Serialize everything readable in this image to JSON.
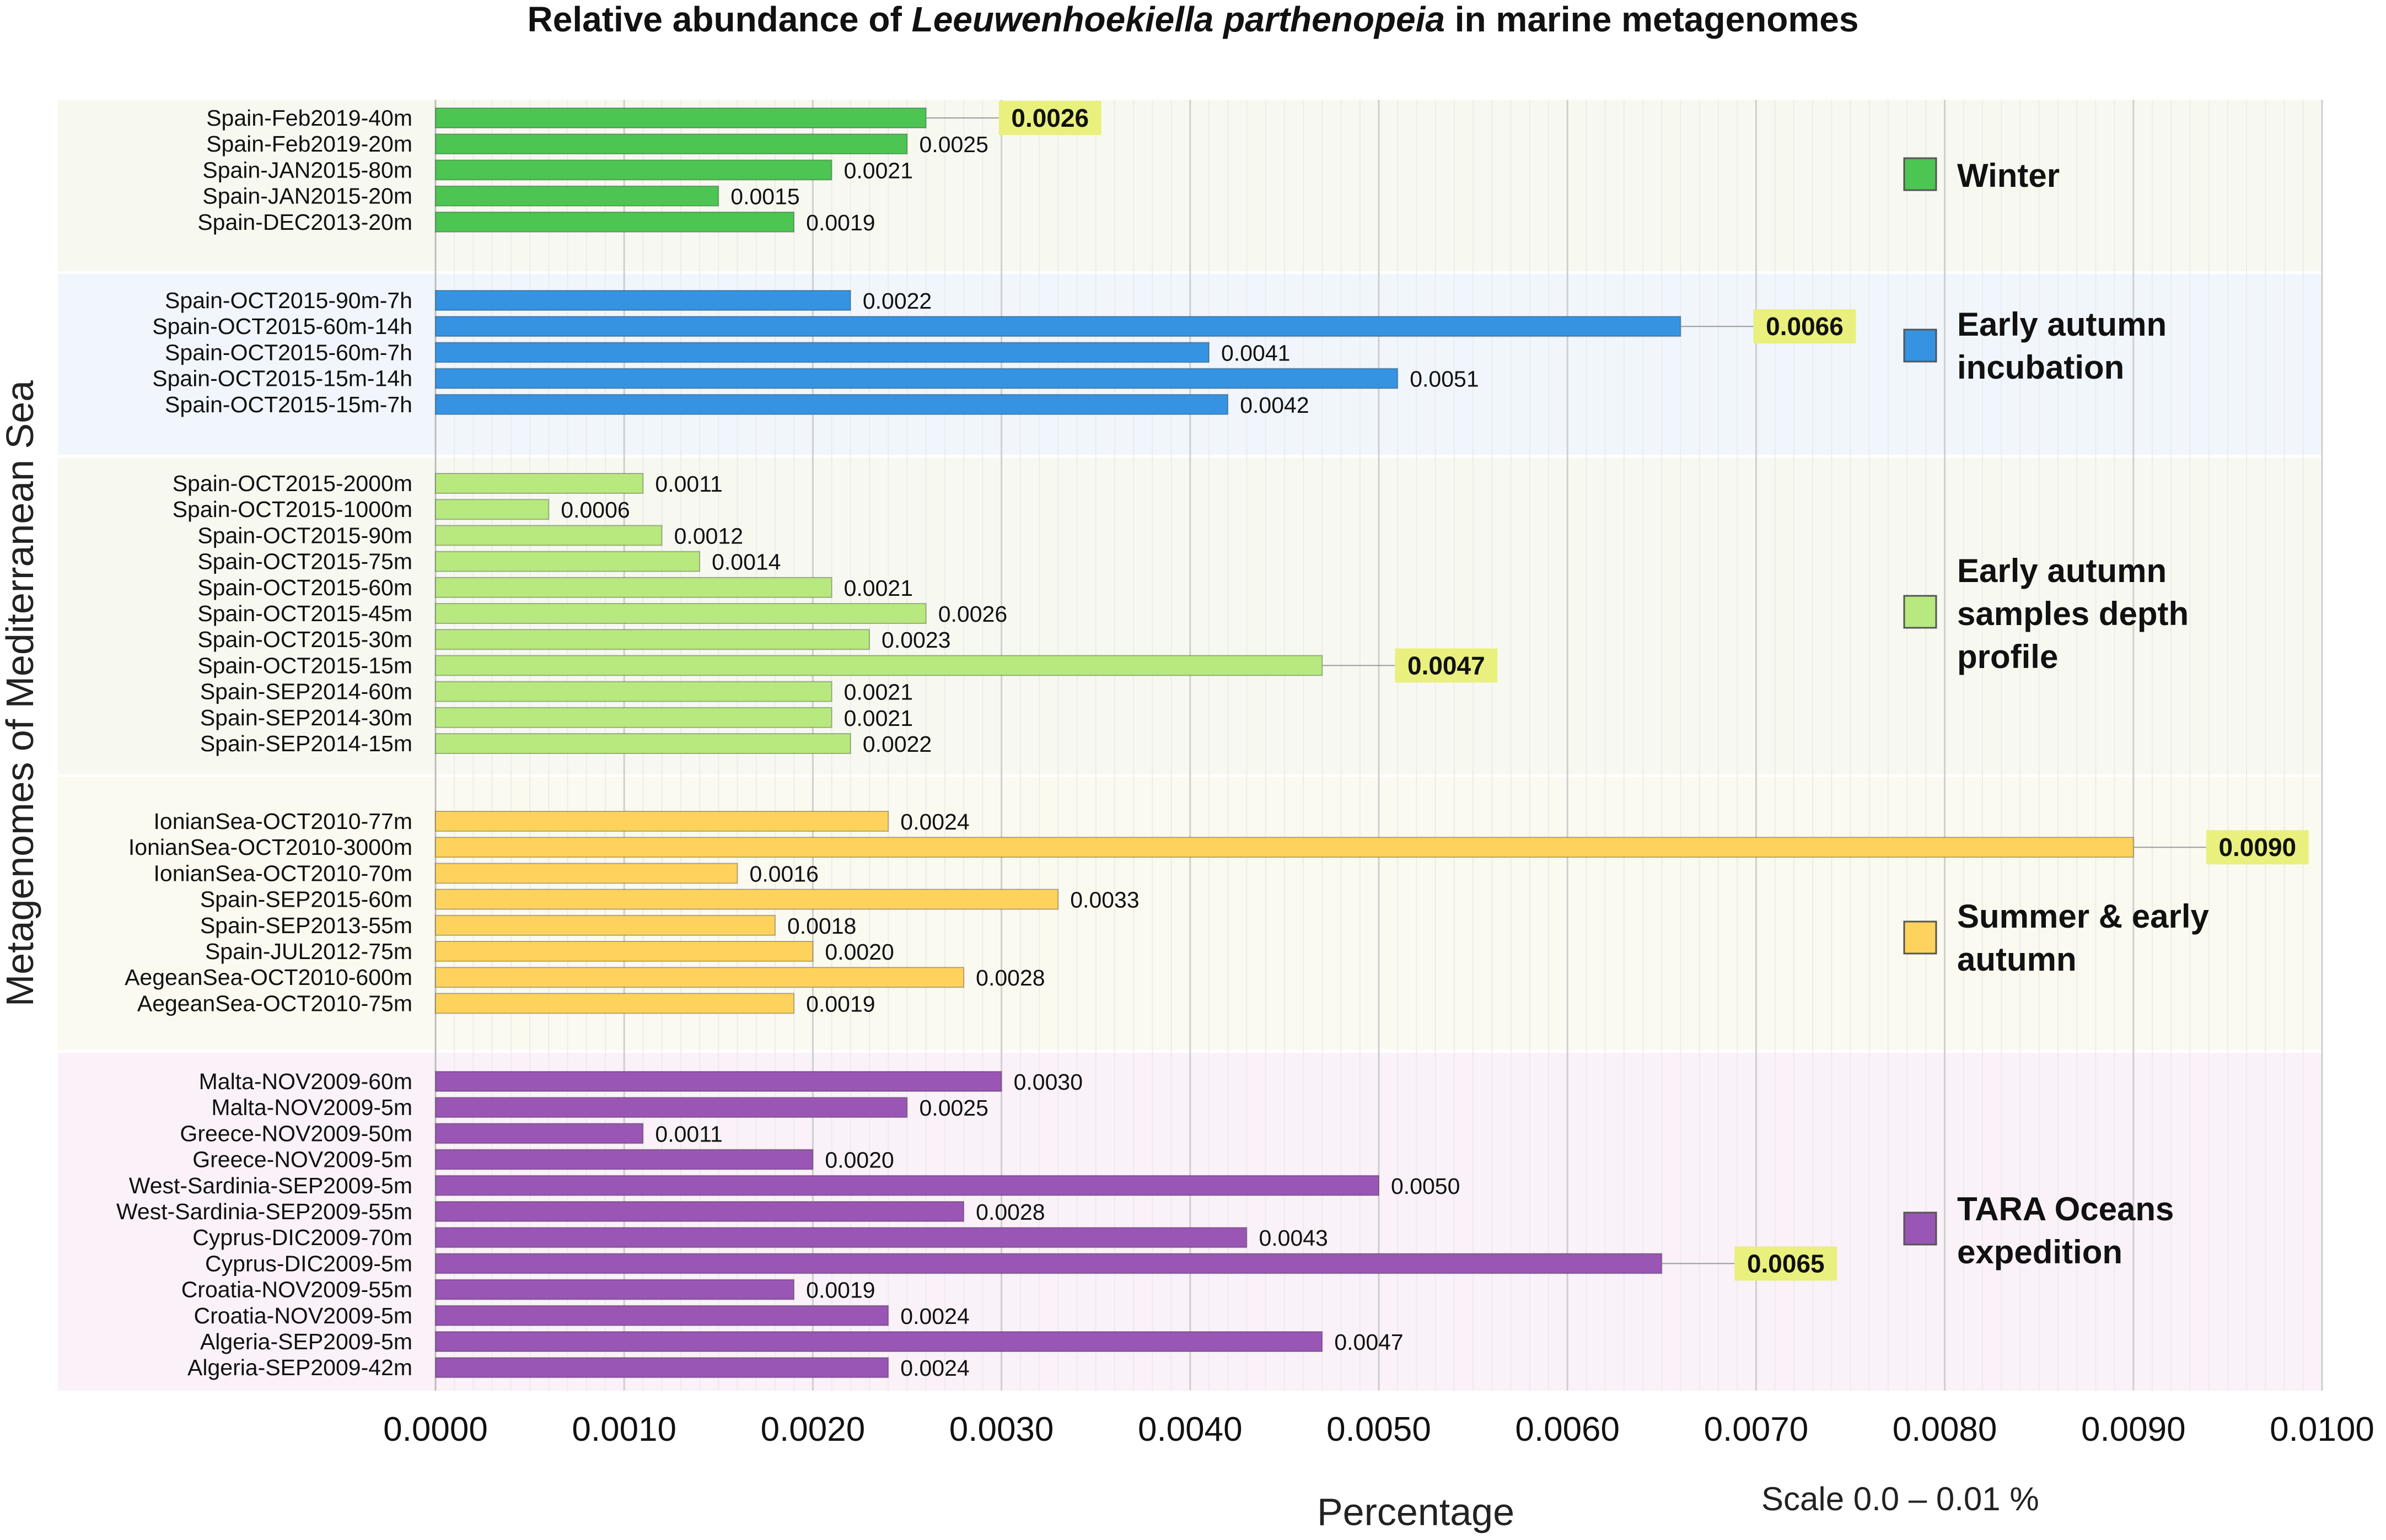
{
  "chart_data": {
    "type": "bar",
    "orientation": "horizontal",
    "title": {
      "prefix": "Relative abundance of ",
      "species": "Leeuwenhoekiella parthenopeia",
      "suffix": " in marine metagenomes"
    },
    "xlabel": "Percentage",
    "ylabel": "Metagenomes of Mediterranean Sea",
    "scale_note": "Scale 0.0 – 0.01 %",
    "xlim": [
      0,
      0.01
    ],
    "xticks": [
      0,
      0.001,
      0.002,
      0.003,
      0.004,
      0.005,
      0.006,
      0.007,
      0.008,
      0.009,
      0.01
    ],
    "xtick_labels": [
      "0.0000",
      "0.0010",
      "0.0020",
      "0.0030",
      "0.0040",
      "0.0050",
      "0.0060",
      "0.0070",
      "0.0080",
      "0.0090",
      "0.0100"
    ],
    "grid": "vertical",
    "groups": [
      {
        "name": "Winter",
        "legend": [
          "Winter"
        ],
        "color": "#4cc552",
        "band_color": "#f7f9f1",
        "categories": [
          "Spain-Feb2019-40m",
          "Spain-Feb2019-20m",
          "Spain-JAN2015-80m",
          "Spain-JAN2015-20m",
          "Spain-DEC2013-20m"
        ],
        "values": [
          0.0026,
          0.0025,
          0.0021,
          0.0015,
          0.0019
        ],
        "labels": [
          "0.0026",
          "0.0025",
          "0.0021",
          "0.0015",
          "0.0019"
        ],
        "highlight_index": 0
      },
      {
        "name": "Early autumn incubation",
        "legend": [
          "Early autumn",
          "incubation"
        ],
        "color": "#3593e2",
        "band_color": "#f0f6fc",
        "categories": [
          "Spain-OCT2015-90m-7h",
          "Spain-OCT2015-60m-14h",
          "Spain-OCT2015-60m-7h",
          "Spain-OCT2015-15m-14h",
          "Spain-OCT2015-15m-7h"
        ],
        "values": [
          0.0022,
          0.0066,
          0.0041,
          0.0051,
          0.0042
        ],
        "labels": [
          "0.0022",
          "0.0066",
          "0.0041",
          "0.0051",
          "0.0042"
        ],
        "highlight_index": 1
      },
      {
        "name": "Early autumn samples depth profile",
        "legend": [
          "Early autumn",
          "samples depth",
          "profile"
        ],
        "color": "#b7e97f",
        "band_color": "#f7f9f1",
        "categories": [
          "Spain-OCT2015-2000m",
          "Spain-OCT2015-1000m",
          "Spain-OCT2015-90m",
          "Spain-OCT2015-75m",
          "Spain-OCT2015-60m",
          "Spain-OCT2015-45m",
          "Spain-OCT2015-30m",
          "Spain-OCT2015-15m",
          "Spain-SEP2014-60m",
          "Spain-SEP2014-30m",
          "Spain-SEP2014-15m"
        ],
        "values": [
          0.0011,
          0.0006,
          0.0012,
          0.0014,
          0.0021,
          0.0026,
          0.0023,
          0.0047,
          0.0021,
          0.0021,
          0.0022
        ],
        "labels": [
          "0.0011",
          "0.0006",
          "0.0012",
          "0.0014",
          "0.0021",
          "0.0026",
          "0.0023",
          "0.0047",
          "0.0021",
          "0.0021",
          "0.0022"
        ],
        "highlight_index": 7
      },
      {
        "name": "Summer & early autumn",
        "legend": [
          "Summer & early",
          "autumn"
        ],
        "color": "#fdd35e",
        "band_color": "#fafaf0",
        "categories": [
          "IonianSea-OCT2010-77m",
          "IonianSea-OCT2010-3000m",
          "IonianSea-OCT2010-70m",
          "Spain-SEP2015-60m",
          "Spain-SEP2013-55m",
          "Spain-JUL2012-75m",
          "AegeanSea-OCT2010-600m",
          "AegeanSea-OCT2010-75m"
        ],
        "values": [
          0.0024,
          0.009,
          0.0016,
          0.0033,
          0.0018,
          0.002,
          0.0028,
          0.0019
        ],
        "labels": [
          "0.0024",
          "0.0090",
          "0.0016",
          "0.0033",
          "0.0018",
          "0.0020",
          "0.0028",
          "0.0019"
        ],
        "highlight_index": 1
      },
      {
        "name": "TARA Oceans expedition",
        "legend": [
          "TARA Oceans",
          "expedition"
        ],
        "color": "#9956b4",
        "band_color": "#faf1f9",
        "categories": [
          "Malta-NOV2009-60m",
          "Malta-NOV2009-5m",
          "Greece-NOV2009-50m",
          "Greece-NOV2009-5m",
          "West-Sardinia-SEP2009-5m",
          "West-Sardinia-SEP2009-55m",
          "Cyprus-DIC2009-70m",
          "Cyprus-DIC2009-5m",
          "Croatia-NOV2009-55m",
          "Croatia-NOV2009-5m",
          "Algeria-SEP2009-5m",
          "Algeria-SEP2009-42m"
        ],
        "values": [
          0.003,
          0.0025,
          0.0011,
          0.002,
          0.005,
          0.0028,
          0.0043,
          0.0065,
          0.0019,
          0.0024,
          0.0047,
          0.0024
        ],
        "labels": [
          "0.0030",
          "0.0025",
          "0.0011",
          "0.0020",
          "0.0050",
          "0.0028",
          "0.0043",
          "0.0065",
          "0.0019",
          "0.0024",
          "0.0047",
          "0.0024"
        ],
        "highlight_index": 7
      }
    ],
    "highlight_color": "#e9f07e"
  }
}
